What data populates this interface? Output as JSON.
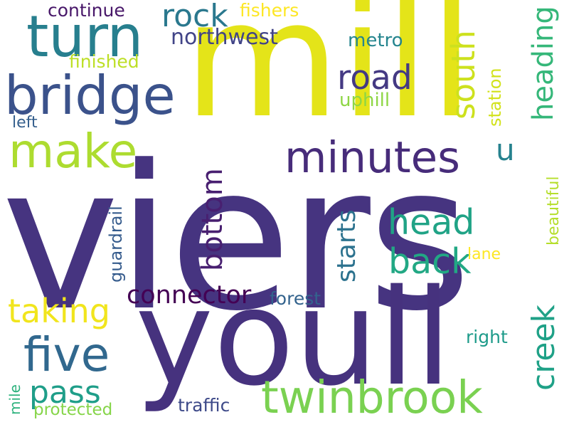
{
  "words": [
    {
      "id": "viers",
      "text": "viers",
      "color": "#463480"
    },
    {
      "id": "mill",
      "text": "mill",
      "color": "#e4e419"
    },
    {
      "id": "youll",
      "text": "youll",
      "color": "#46327e"
    },
    {
      "id": "turn",
      "text": "turn",
      "color": "#277f8e"
    },
    {
      "id": "bridge",
      "text": "bridge",
      "color": "#3b528b"
    },
    {
      "id": "make",
      "text": "make",
      "color": "#addc30"
    },
    {
      "id": "minutes",
      "text": "minutes",
      "color": "#472c7a"
    },
    {
      "id": "twinbrook",
      "text": "twinbrook",
      "color": "#7ad151"
    },
    {
      "id": "five",
      "text": "five",
      "color": "#31688e"
    },
    {
      "id": "rock",
      "text": "rock",
      "color": "#2a788e"
    },
    {
      "id": "northwest",
      "text": "northwest",
      "color": "#414487"
    },
    {
      "id": "road",
      "text": "road",
      "color": "#443983"
    },
    {
      "id": "south",
      "text": "south",
      "color": "#cde11d"
    },
    {
      "id": "heading",
      "text": "heading",
      "color": "#35b779"
    },
    {
      "id": "head",
      "text": "head",
      "color": "#20a386"
    },
    {
      "id": "back",
      "text": "back",
      "color": "#22a884"
    },
    {
      "id": "bottom",
      "text": "bottom",
      "color": "#481f70"
    },
    {
      "id": "starts",
      "text": "starts",
      "color": "#2c728e"
    },
    {
      "id": "taking",
      "text": "taking",
      "color": "#f1e51d"
    },
    {
      "id": "connector",
      "text": "connector",
      "color": "#440154"
    },
    {
      "id": "pass",
      "text": "pass",
      "color": "#1f9e89"
    },
    {
      "id": "creek",
      "text": "creek",
      "color": "#1fa187"
    },
    {
      "id": "continue",
      "text": "continue",
      "color": "#481769"
    },
    {
      "id": "fishers",
      "text": "fishers",
      "color": "#fde725"
    },
    {
      "id": "metro",
      "text": "metro",
      "color": "#25858e"
    },
    {
      "id": "finished",
      "text": "finished",
      "color": "#bddf26"
    },
    {
      "id": "uphill",
      "text": "uphill",
      "color": "#8ed645"
    },
    {
      "id": "left",
      "text": "left",
      "color": "#355f8d"
    },
    {
      "id": "u",
      "text": "u",
      "color": "#26828e"
    },
    {
      "id": "station",
      "text": "station",
      "color": "#d2e21b"
    },
    {
      "id": "beautiful",
      "text": "beautiful",
      "color": "#b5de2b"
    },
    {
      "id": "guardrail",
      "text": "guardrail",
      "color": "#365c8d"
    },
    {
      "id": "lane",
      "text": "lane",
      "color": "#fde725"
    },
    {
      "id": "forest",
      "text": "forest",
      "color": "#33638d"
    },
    {
      "id": "right",
      "text": "right",
      "color": "#1e9b8a"
    },
    {
      "id": "traffic",
      "text": "traffic",
      "color": "#3e4a89"
    },
    {
      "id": "mile",
      "text": "mile",
      "color": "#2db27d"
    },
    {
      "id": "protected",
      "text": "protected",
      "color": "#86d549"
    }
  ]
}
